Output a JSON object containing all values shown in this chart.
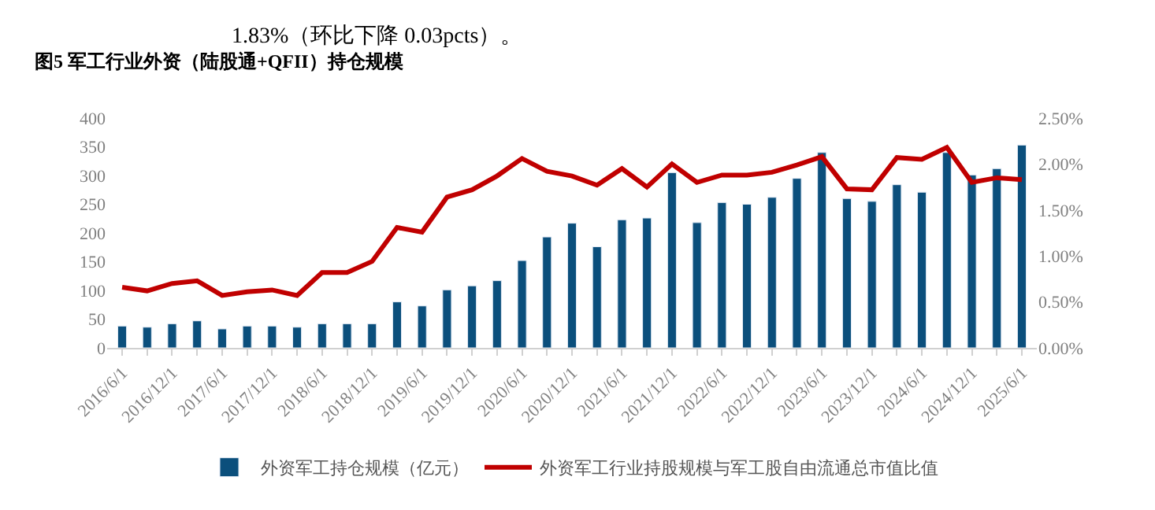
{
  "chart_data": {
    "type": "bar",
    "title": "图5 军工行业外资（陆股通+QFII）持仓规模",
    "annotations": [
      "1.83%（环比下降 0.03pcts）。"
    ],
    "categories": [
      "2016/6/1",
      null,
      "2016/12/1",
      null,
      "2017/6/1",
      null,
      "2017/12/1",
      null,
      "2018/6/1",
      null,
      "2018/12/1",
      null,
      "2019/6/1",
      null,
      "2019/12/1",
      null,
      "2020/6/1",
      null,
      "2020/12/1",
      null,
      "2021/6/1",
      null,
      "2021/12/1",
      null,
      "2022/6/1",
      null,
      "2022/12/1",
      null,
      "2023/6/1",
      null,
      "2023/12/1",
      null,
      "2024/6/1",
      null,
      "2024/12/1",
      null,
      "2025/6/1"
    ],
    "series": [
      {
        "name": "外资军工持仓规模（亿元）",
        "color": "#0b4f7c",
        "values": [
          38,
          36,
          42,
          47,
          33,
          38,
          38,
          36,
          42,
          42,
          42,
          80,
          73,
          101,
          108,
          117,
          152,
          193,
          217,
          176,
          223,
          226,
          305,
          218,
          253,
          250,
          262,
          295,
          340,
          260,
          255,
          284,
          271,
          340,
          301,
          312,
          353
        ]
      },
      {
        "name": "外资军工行业持股规模与军工股自由流通总市值比值",
        "type": "line",
        "axis": "y2",
        "color": "#c00000",
        "values": [
          0.66,
          0.62,
          0.7,
          0.73,
          0.57,
          0.61,
          0.63,
          0.57,
          0.82,
          0.82,
          0.94,
          1.31,
          1.26,
          1.64,
          1.72,
          1.87,
          2.06,
          1.92,
          1.87,
          1.77,
          1.95,
          1.75,
          2.0,
          1.8,
          1.88,
          1.88,
          1.91,
          1.99,
          2.08,
          1.73,
          1.72,
          2.07,
          2.05,
          2.18,
          1.8,
          1.85,
          1.83
        ]
      }
    ],
    "ylim": [
      0,
      400
    ],
    "yticks": [
      0,
      50,
      100,
      150,
      200,
      250,
      300,
      350,
      400
    ],
    "y2lim": [
      0,
      2.5
    ],
    "y2ticks": [
      {
        "value": 0,
        "label": "0.00%"
      },
      {
        "value": 0.5,
        "label": "0.50%"
      },
      {
        "value": 1,
        "label": "1.00%"
      },
      {
        "value": 1.5,
        "label": "1.50%"
      },
      {
        "value": 2,
        "label": "2.00%"
      },
      {
        "value": 2.5,
        "label": "2.50%"
      }
    ],
    "legend": "bottom",
    "marker": "none",
    "line_style": "solid"
  }
}
